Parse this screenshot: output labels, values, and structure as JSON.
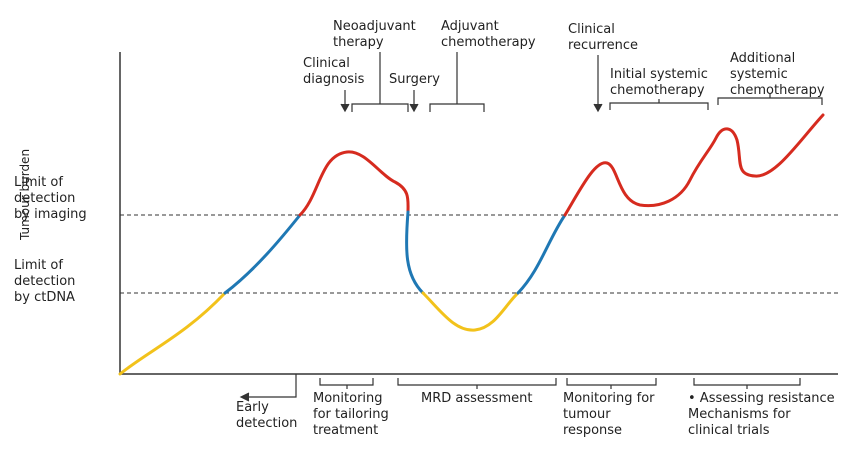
{
  "y_axis_label": "Tumour burden",
  "thresholds": {
    "imaging": "Limit of\ndetection\nby imaging",
    "ctdna": "Limit of\ndetection\nby ctDNA"
  },
  "top_events": {
    "neoadjuvant": "Neoadjuvant\ntherapy",
    "adjuvant": "Adjuvant\nchemotherapy",
    "clinical_diagnosis": "Clinical\ndiagnosis",
    "surgery": "Surgery",
    "clinical_recurrence": "Clinical\nrecurrence",
    "initial_systemic": "Initial systemic\nchemotherapy",
    "additional_systemic": "Additional\nsystemic\nchemotherapy"
  },
  "bottom_phases": {
    "early_detection": "Early\ndetection",
    "tailoring": "Monitoring\nfor tailoring\ntreatment",
    "mrd": "MRD assessment",
    "tumour_response": "Monitoring for\ntumour\nresponse",
    "resistance": "• Assessing resistance\n  Mechanisms for\n  clinical trials"
  },
  "colors": {
    "below_ctdna": "#f2c21b",
    "ctdna_detectable": "#1f78b4",
    "imaging_detectable": "#d62b1f",
    "axis": "#333333"
  }
}
